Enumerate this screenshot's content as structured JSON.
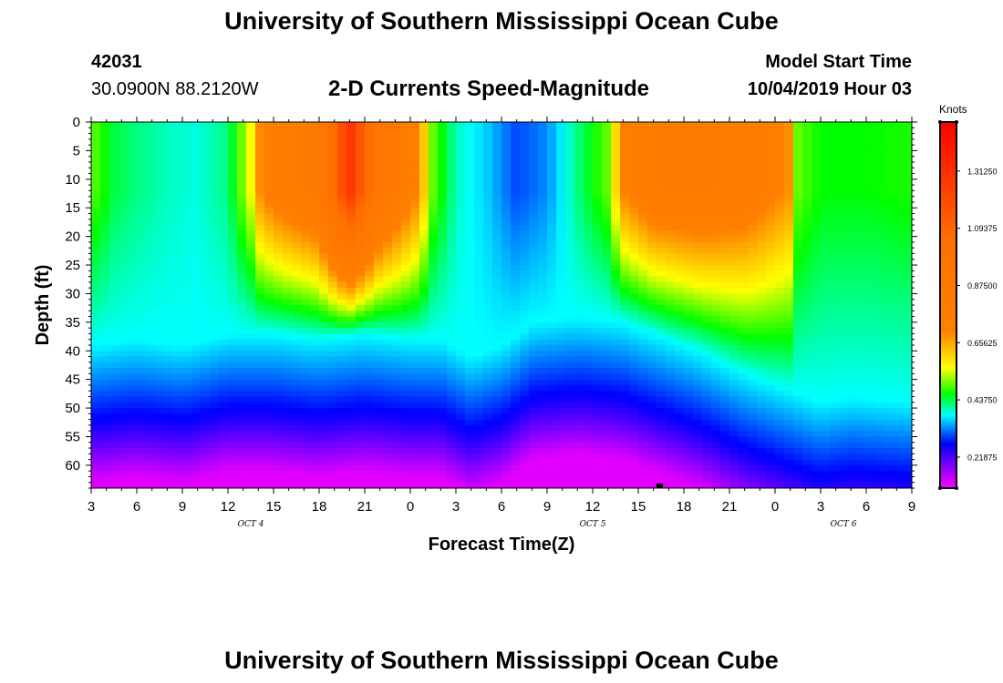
{
  "page": {
    "title_top": "University of Southern Mississippi Ocean Cube",
    "title_bottom": "University of Southern Mississippi Ocean Cube",
    "station_id": "42031",
    "station_coords": "30.0900N 88.2120W",
    "plot_title": "2-D Currents Speed-Magnitude",
    "model_start_label": "Model Start Time",
    "model_start_value": "10/04/2019 Hour 03"
  },
  "chart_data": {
    "type": "heatmap",
    "title": "2-D Currents Speed-Magnitude",
    "xlabel": "Forecast Time(Z)",
    "ylabel": "Depth (ft)",
    "x_ticks": [
      "3",
      "6",
      "9",
      "12",
      "15",
      "18",
      "21",
      "0",
      "3",
      "6",
      "9",
      "12",
      "15",
      "18",
      "21",
      "0",
      "3",
      "6",
      "9"
    ],
    "x_range_hours": [
      0,
      54
    ],
    "date_labels": [
      {
        "text": "OCT 4",
        "hour": 10.5
      },
      {
        "text": "OCT 5",
        "hour": 33
      },
      {
        "text": "OCT 6",
        "hour": 49.5
      }
    ],
    "y_ticks": [
      "0",
      "5",
      "10",
      "15",
      "20",
      "25",
      "30",
      "35",
      "40",
      "45",
      "50",
      "55",
      "60"
    ],
    "ylim": [
      0,
      64
    ],
    "colorbar": {
      "unit": "Knots",
      "ticks": [
        "1.31250",
        "1.09375",
        "0.87500",
        "0.65625",
        "0.43750",
        "0.21875"
      ],
      "range": [
        0.1,
        1.5
      ]
    },
    "colormap_stops": [
      {
        "v": 0.1,
        "color": "#ff00ff"
      },
      {
        "v": 0.27,
        "color": "#0000ff"
      },
      {
        "v": 0.38,
        "color": "#00ffff"
      },
      {
        "v": 0.46,
        "color": "#00ff00"
      },
      {
        "v": 0.56,
        "color": "#ffff00"
      },
      {
        "v": 0.7,
        "color": "#ff8000"
      },
      {
        "v": 1.05,
        "color": "#ff7000"
      },
      {
        "v": 1.5,
        "color": "#ff0000"
      }
    ],
    "surface_speed_by_hour": [
      [
        0,
        0.5
      ],
      [
        1.5,
        0.44
      ],
      [
        3,
        0.42
      ],
      [
        5,
        0.4
      ],
      [
        7,
        0.39
      ],
      [
        9,
        0.42
      ],
      [
        10.5,
        0.56
      ],
      [
        11,
        0.68
      ],
      [
        12,
        0.75
      ],
      [
        15,
        0.85
      ],
      [
        17,
        1.3
      ],
      [
        19,
        0.9
      ],
      [
        21.5,
        0.7
      ],
      [
        22.5,
        0.5
      ],
      [
        24,
        0.4
      ],
      [
        26,
        0.36
      ],
      [
        28,
        0.3
      ],
      [
        30,
        0.33
      ],
      [
        32,
        0.42
      ],
      [
        34,
        0.5
      ],
      [
        35,
        0.7
      ],
      [
        37,
        0.8
      ],
      [
        40,
        0.82
      ],
      [
        43,
        0.78
      ],
      [
        46,
        0.68
      ],
      [
        46.5,
        0.5
      ],
      [
        48,
        0.46
      ],
      [
        51,
        0.46
      ],
      [
        54,
        0.47
      ]
    ],
    "deep_boundary_ft_by_hour": [
      [
        0,
        45
      ],
      [
        3,
        44
      ],
      [
        6,
        45
      ],
      [
        9,
        43
      ],
      [
        12,
        43
      ],
      [
        15,
        44
      ],
      [
        18,
        43
      ],
      [
        21,
        44
      ],
      [
        23,
        44
      ],
      [
        25,
        47
      ],
      [
        27,
        45
      ],
      [
        29,
        41
      ],
      [
        32,
        40
      ],
      [
        35,
        41
      ],
      [
        37,
        43
      ],
      [
        40,
        46
      ],
      [
        43,
        50
      ],
      [
        46,
        53
      ],
      [
        48,
        55
      ],
      [
        50,
        54
      ],
      [
        54,
        55
      ]
    ]
  }
}
